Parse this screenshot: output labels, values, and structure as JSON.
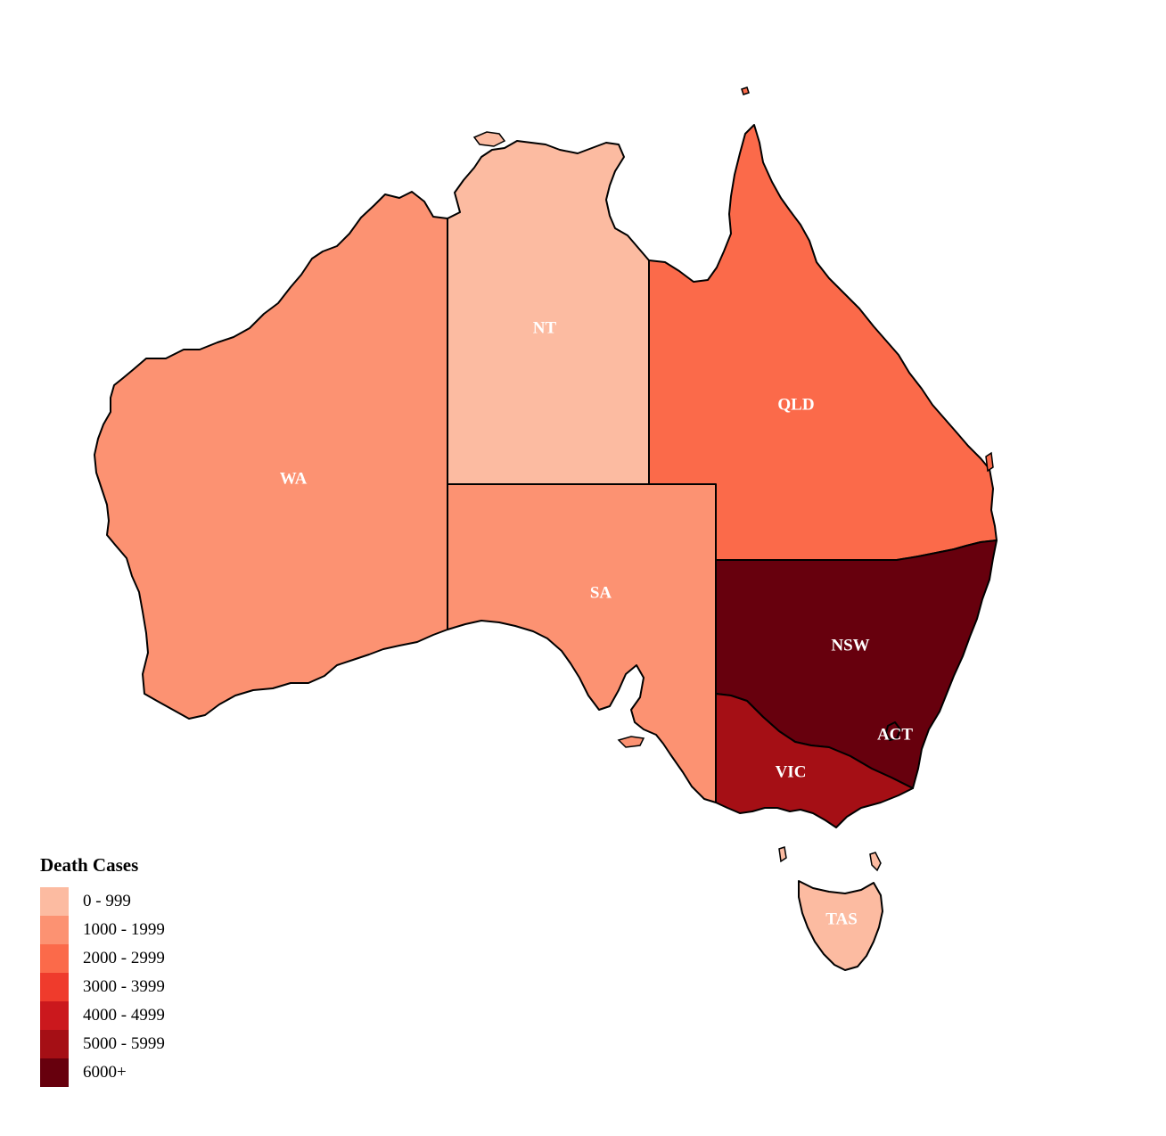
{
  "legend": {
    "title": "Death Cases",
    "items": [
      {
        "label": "0 - 999",
        "color": "#fcbba1"
      },
      {
        "label": "1000 - 1999",
        "color": "#fc9272"
      },
      {
        "label": "2000 - 2999",
        "color": "#fb6a4a"
      },
      {
        "label": "3000 - 3999",
        "color": "#ef3b2c"
      },
      {
        "label": "4000 - 4999",
        "color": "#cb181d"
      },
      {
        "label": "5000 - 5999",
        "color": "#a50f15"
      },
      {
        "label": "6000+",
        "color": "#67000d"
      }
    ]
  },
  "states": [
    {
      "code": "WA",
      "label": "WA",
      "bin": "1000 - 1999",
      "color": "#fc9272"
    },
    {
      "code": "NT",
      "label": "NT",
      "bin": "0 - 999",
      "color": "#fcbba1"
    },
    {
      "code": "SA",
      "label": "SA",
      "bin": "1000 - 1999",
      "color": "#fc9272"
    },
    {
      "code": "QLD",
      "label": "QLD",
      "bin": "2000 - 2999",
      "color": "#fb6a4a"
    },
    {
      "code": "NSW",
      "label": "NSW",
      "bin": "6000+",
      "color": "#67000d"
    },
    {
      "code": "ACT",
      "label": "ACT",
      "bin": "6000+",
      "color": "#67000d"
    },
    {
      "code": "VIC",
      "label": "VIC",
      "bin": "5000 - 5999",
      "color": "#a50f15"
    },
    {
      "code": "TAS",
      "label": "TAS",
      "bin": "0 - 999",
      "color": "#fcbba1"
    }
  ]
}
